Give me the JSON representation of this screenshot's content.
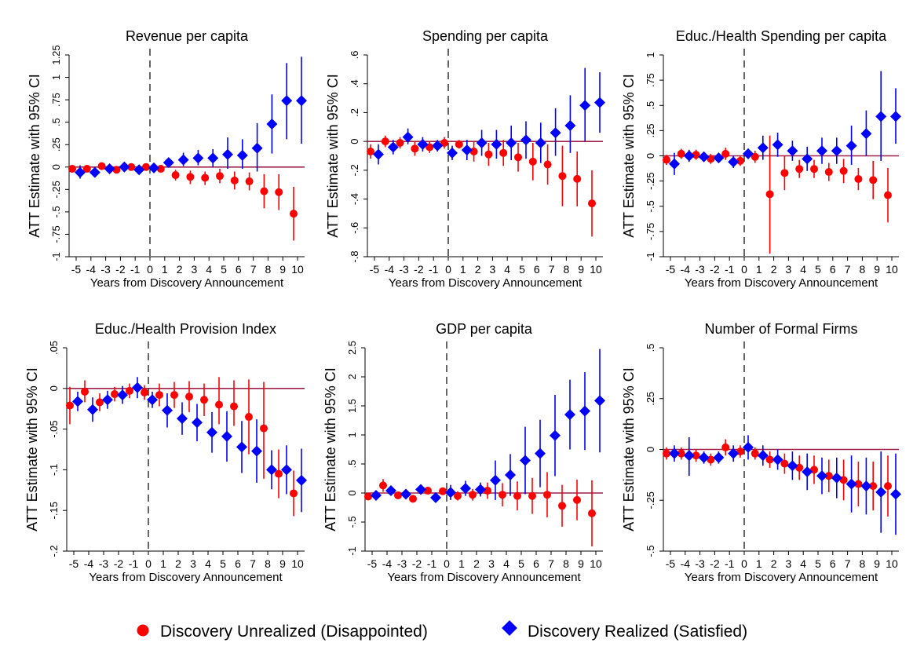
{
  "legend": {
    "unrealized_label": "Discovery Unrealized (Disappointed)",
    "realized_label": "Discovery Realized (Satisfied)"
  },
  "colors": {
    "unrealized": "#ff0000",
    "realized": "#0000ff",
    "zero_line": "#a0204a"
  },
  "chart_data": [
    {
      "type": "scatter",
      "title": "Revenue per capita",
      "xlabel": "Years from Discovery Announcement",
      "ylabel": "ATT Estimate with 95% CI",
      "ylim": [
        -1,
        1.25
      ],
      "yticks": [
        -1,
        -0.75,
        -0.5,
        -0.25,
        0,
        0.25,
        0.5,
        0.75,
        1,
        1.25
      ],
      "ytick_labels": [
        "-1",
        "-.75",
        "-.5",
        "-.25",
        "0",
        ".25",
        ".5",
        ".75",
        "1",
        "1.25"
      ],
      "x": [
        -5,
        -4,
        -3,
        -2,
        -1,
        0,
        1,
        2,
        3,
        4,
        5,
        6,
        7,
        8,
        9,
        10
      ],
      "series": [
        {
          "values": [
            -0.02,
            -0.02,
            0.01,
            -0.03,
            0.0,
            0.0,
            -0.02,
            -0.09,
            -0.11,
            -0.12,
            -0.1,
            -0.15,
            -0.16,
            -0.27,
            -0.28,
            -0.52
          ],
          "lo": [
            -0.06,
            -0.05,
            -0.02,
            -0.05,
            -0.02,
            -0.03,
            -0.06,
            -0.15,
            -0.19,
            -0.2,
            -0.18,
            -0.25,
            -0.26,
            -0.46,
            -0.48,
            -0.82
          ],
          "hi": [
            0.02,
            0.01,
            0.04,
            -0.01,
            0.02,
            0.03,
            0.02,
            -0.03,
            -0.04,
            -0.05,
            -0.02,
            -0.05,
            -0.06,
            -0.08,
            -0.08,
            -0.22
          ]
        },
        {
          "values": [
            -0.06,
            -0.06,
            -0.02,
            0.0,
            -0.03,
            -0.01,
            0.05,
            0.08,
            0.1,
            0.1,
            0.14,
            0.13,
            0.21,
            0.48,
            0.74,
            0.74
          ],
          "lo": [
            -0.13,
            -0.11,
            -0.05,
            -0.02,
            -0.06,
            -0.04,
            0.0,
            0.01,
            0.02,
            0.0,
            -0.02,
            -0.02,
            -0.05,
            0.15,
            0.31,
            0.26
          ],
          "hi": [
            0.02,
            -0.01,
            0.01,
            0.02,
            0.0,
            0.02,
            0.1,
            0.16,
            0.19,
            0.2,
            0.33,
            0.31,
            0.49,
            0.81,
            1.16,
            1.23
          ]
        }
      ]
    },
    {
      "type": "scatter",
      "title": "Spending per capita",
      "xlabel": "Years from Discovery Announcement",
      "ylabel": "ATT Estimate with 95% CI",
      "ylim": [
        -0.8,
        0.6
      ],
      "yticks": [
        -0.8,
        -0.6,
        -0.4,
        -0.2,
        0,
        0.2,
        0.4,
        0.6
      ],
      "ytick_labels": [
        "-.8",
        "-.6",
        "-.4",
        "-.2",
        "0",
        ".2",
        ".4",
        ".6"
      ],
      "x": [
        -5,
        -4,
        -3,
        -2,
        -1,
        0,
        1,
        2,
        3,
        4,
        5,
        6,
        7,
        8,
        9,
        10
      ],
      "series": [
        {
          "values": [
            -0.07,
            0.0,
            -0.01,
            -0.05,
            -0.04,
            -0.01,
            -0.02,
            -0.07,
            -0.09,
            -0.08,
            -0.11,
            -0.14,
            -0.16,
            -0.24,
            -0.26,
            -0.43
          ],
          "lo": [
            -0.12,
            -0.04,
            -0.05,
            -0.1,
            -0.08,
            -0.05,
            -0.05,
            -0.14,
            -0.17,
            -0.17,
            -0.21,
            -0.27,
            -0.3,
            -0.45,
            -0.45,
            -0.66
          ],
          "hi": [
            -0.02,
            0.04,
            0.03,
            0.0,
            0.0,
            0.03,
            0.01,
            0.0,
            -0.01,
            0.01,
            -0.01,
            -0.01,
            -0.02,
            -0.03,
            -0.07,
            -0.2
          ]
        },
        {
          "values": [
            -0.09,
            -0.04,
            0.03,
            -0.02,
            -0.03,
            -0.08,
            -0.06,
            -0.01,
            -0.02,
            -0.01,
            0.01,
            -0.01,
            0.06,
            0.11,
            0.25,
            0.27
          ],
          "lo": [
            -0.16,
            -0.09,
            -0.02,
            -0.07,
            -0.07,
            -0.13,
            -0.13,
            -0.1,
            -0.12,
            -0.13,
            -0.12,
            -0.15,
            -0.1,
            -0.08,
            0.0,
            0.06
          ],
          "hi": [
            -0.02,
            0.01,
            0.09,
            0.03,
            0.01,
            -0.03,
            0.01,
            0.08,
            0.08,
            0.11,
            0.14,
            0.13,
            0.23,
            0.32,
            0.51,
            0.48
          ]
        }
      ]
    },
    {
      "type": "scatter",
      "title": "Educ./Health Spending per capita",
      "xlabel": "Years from Discovery Announcement",
      "ylabel": "ATT Estimate with 95% CI",
      "ylim": [
        -1,
        1
      ],
      "yticks": [
        -1,
        -0.75,
        -0.5,
        -0.25,
        0,
        0.25,
        0.5,
        0.75,
        1
      ],
      "ytick_labels": [
        "-1",
        "-.75",
        "-.5",
        "-.25",
        "0",
        ".25",
        ".5",
        ".75",
        "1"
      ],
      "x": [
        -5,
        -4,
        -3,
        -2,
        -1,
        0,
        1,
        2,
        3,
        4,
        5,
        6,
        7,
        8,
        9,
        10
      ],
      "series": [
        {
          "values": [
            -0.04,
            0.02,
            0.01,
            -0.03,
            0.02,
            -0.05,
            -0.01,
            -0.38,
            -0.17,
            -0.13,
            -0.13,
            -0.16,
            -0.15,
            -0.23,
            -0.24,
            -0.39
          ],
          "lo": [
            -0.09,
            -0.03,
            -0.04,
            -0.08,
            -0.04,
            -0.1,
            -0.07,
            -0.97,
            -0.34,
            -0.22,
            -0.22,
            -0.25,
            -0.27,
            -0.34,
            -0.43,
            -0.66
          ],
          "hi": [
            0.01,
            0.07,
            0.06,
            0.02,
            0.08,
            0.0,
            0.05,
            0.2,
            0.0,
            -0.04,
            -0.04,
            -0.07,
            -0.03,
            -0.12,
            -0.05,
            -0.12
          ]
        },
        {
          "values": [
            -0.08,
            0.0,
            -0.01,
            -0.02,
            -0.06,
            0.02,
            0.08,
            0.11,
            0.05,
            -0.03,
            0.05,
            0.05,
            0.1,
            0.22,
            0.39,
            0.39
          ],
          "lo": [
            -0.19,
            -0.06,
            -0.05,
            -0.06,
            -0.12,
            -0.03,
            -0.04,
            -0.01,
            -0.05,
            -0.15,
            -0.08,
            -0.08,
            -0.09,
            0.0,
            -0.05,
            0.12
          ],
          "hi": [
            0.03,
            0.06,
            0.03,
            0.02,
            0.0,
            0.07,
            0.2,
            0.23,
            0.15,
            0.09,
            0.18,
            0.18,
            0.3,
            0.45,
            0.84,
            0.67
          ]
        }
      ]
    },
    {
      "type": "scatter",
      "title": "Educ./Health Provision Index",
      "xlabel": "Years from Discovery Announcement",
      "ylabel": "ATT Estimate with 95% CI",
      "ylim": [
        -0.2,
        0.05
      ],
      "yticks": [
        -0.2,
        -0.15,
        -0.1,
        -0.05,
        0,
        0.05
      ],
      "ytick_labels": [
        "-.2",
        "-.15",
        "-.1",
        "-.05",
        "0",
        ".05"
      ],
      "x": [
        -5,
        -4,
        -3,
        -2,
        -1,
        0,
        1,
        2,
        3,
        4,
        5,
        6,
        7,
        8,
        9,
        10
      ],
      "series": [
        {
          "values": [
            -0.021,
            -0.004,
            -0.017,
            -0.007,
            -0.003,
            -0.005,
            -0.008,
            -0.008,
            -0.01,
            -0.014,
            -0.02,
            -0.022,
            -0.035,
            -0.049,
            -0.105,
            -0.129
          ],
          "lo": [
            -0.044,
            -0.017,
            -0.028,
            -0.016,
            -0.012,
            -0.014,
            -0.022,
            -0.024,
            -0.029,
            -0.034,
            -0.044,
            -0.046,
            -0.081,
            -0.111,
            -0.135,
            -0.157
          ],
          "hi": [
            0.002,
            0.01,
            -0.006,
            0.002,
            0.006,
            0.004,
            0.006,
            0.008,
            0.009,
            0.006,
            0.014,
            0.01,
            0.011,
            0.008,
            -0.075,
            -0.101
          ]
        },
        {
          "values": [
            -0.016,
            -0.026,
            -0.014,
            -0.008,
            0.001,
            -0.014,
            -0.027,
            -0.037,
            -0.042,
            -0.054,
            -0.059,
            -0.072,
            -0.077,
            -0.1,
            -0.1,
            -0.113
          ],
          "lo": [
            -0.028,
            -0.041,
            -0.025,
            -0.019,
            -0.012,
            -0.024,
            -0.048,
            -0.057,
            -0.065,
            -0.079,
            -0.09,
            -0.104,
            -0.116,
            -0.124,
            -0.13,
            -0.152
          ],
          "hi": [
            -0.004,
            -0.011,
            -0.003,
            0.003,
            0.014,
            -0.004,
            -0.006,
            -0.017,
            -0.019,
            -0.029,
            -0.028,
            -0.04,
            -0.038,
            -0.076,
            -0.07,
            -0.074
          ]
        }
      ]
    },
    {
      "type": "scatter",
      "title": "GDP per capita",
      "xlabel": "Years from Discovery Announcement",
      "ylabel": "ATT Estimate with 95% CI",
      "ylim": [
        -1,
        2.5
      ],
      "yticks": [
        -1,
        -0.5,
        0,
        0.5,
        1,
        1.5,
        2,
        2.5
      ],
      "ytick_labels": [
        "-1",
        "-.5",
        "0",
        ".5",
        "1",
        "1.5",
        "2",
        "2.5"
      ],
      "x": [
        -5,
        -4,
        -3,
        -2,
        -1,
        0,
        1,
        2,
        3,
        4,
        5,
        6,
        7,
        8,
        9,
        10
      ],
      "series": [
        {
          "values": [
            -0.06,
            0.13,
            -0.04,
            -0.1,
            0.04,
            0.03,
            -0.05,
            -0.03,
            0.04,
            -0.03,
            -0.05,
            -0.05,
            -0.03,
            -0.22,
            -0.12,
            -0.35
          ],
          "lo": [
            -0.12,
            0.02,
            -0.1,
            -0.15,
            -0.02,
            -0.03,
            -0.13,
            -0.13,
            -0.1,
            -0.23,
            -0.3,
            -0.36,
            -0.42,
            -0.58,
            -0.47,
            -0.92
          ],
          "hi": [
            0.0,
            0.24,
            0.02,
            -0.05,
            0.1,
            0.09,
            0.03,
            0.07,
            0.18,
            0.17,
            0.2,
            0.26,
            0.36,
            0.14,
            0.23,
            0.22
          ]
        },
        {
          "values": [
            -0.04,
            0.04,
            -0.02,
            0.06,
            -0.08,
            0.01,
            0.08,
            0.06,
            0.22,
            0.31,
            0.56,
            0.68,
            0.99,
            1.35,
            1.41,
            1.59
          ],
          "lo": [
            -0.1,
            -0.02,
            -0.08,
            0.0,
            -0.14,
            -0.12,
            -0.05,
            -0.06,
            -0.12,
            -0.05,
            -0.02,
            0.1,
            0.29,
            0.75,
            0.74,
            0.7
          ],
          "hi": [
            0.02,
            0.1,
            0.04,
            0.12,
            -0.02,
            0.14,
            0.21,
            0.18,
            0.56,
            0.67,
            1.14,
            1.26,
            1.69,
            1.95,
            2.08,
            2.48
          ]
        }
      ]
    },
    {
      "type": "scatter",
      "title": "Number of Formal Firms",
      "xlabel": "Years from Discovery Announcement",
      "ylabel": "ATT Estimate with 95% CI",
      "ylim": [
        -0.5,
        0.5
      ],
      "yticks": [
        -0.5,
        -0.25,
        0,
        0.25,
        0.5
      ],
      "ytick_labels": [
        "-.5",
        "-.25",
        "0",
        ".25",
        ".5"
      ],
      "x": [
        -5,
        -4,
        -3,
        -2,
        -1,
        0,
        1,
        2,
        3,
        4,
        5,
        6,
        7,
        8,
        9,
        10
      ],
      "series": [
        {
          "values": [
            -0.02,
            -0.02,
            -0.03,
            -0.05,
            0.01,
            -0.01,
            -0.02,
            -0.05,
            -0.07,
            -0.09,
            -0.1,
            -0.13,
            -0.15,
            -0.17,
            -0.18,
            -0.18
          ],
          "lo": [
            -0.05,
            -0.05,
            -0.06,
            -0.08,
            -0.03,
            -0.04,
            -0.05,
            -0.09,
            -0.12,
            -0.15,
            -0.17,
            -0.21,
            -0.25,
            -0.28,
            -0.3,
            -0.33
          ],
          "hi": [
            0.01,
            0.01,
            0.0,
            -0.02,
            0.05,
            0.02,
            0.01,
            -0.01,
            -0.02,
            -0.03,
            -0.03,
            -0.05,
            -0.05,
            -0.06,
            -0.06,
            -0.03
          ]
        },
        {
          "values": [
            -0.02,
            -0.03,
            -0.04,
            -0.04,
            -0.02,
            0.01,
            -0.03,
            -0.05,
            -0.08,
            -0.11,
            -0.13,
            -0.14,
            -0.17,
            -0.18,
            -0.21,
            -0.22
          ],
          "lo": [
            -0.06,
            -0.13,
            -0.07,
            -0.07,
            -0.06,
            -0.05,
            -0.08,
            -0.1,
            -0.15,
            -0.2,
            -0.22,
            -0.24,
            -0.31,
            -0.32,
            -0.41,
            -0.42
          ],
          "hi": [
            0.02,
            0.06,
            -0.01,
            -0.01,
            0.02,
            0.07,
            0.02,
            0.0,
            -0.01,
            -0.02,
            -0.04,
            -0.04,
            -0.03,
            -0.04,
            -0.01,
            -0.02
          ]
        }
      ]
    }
  ]
}
